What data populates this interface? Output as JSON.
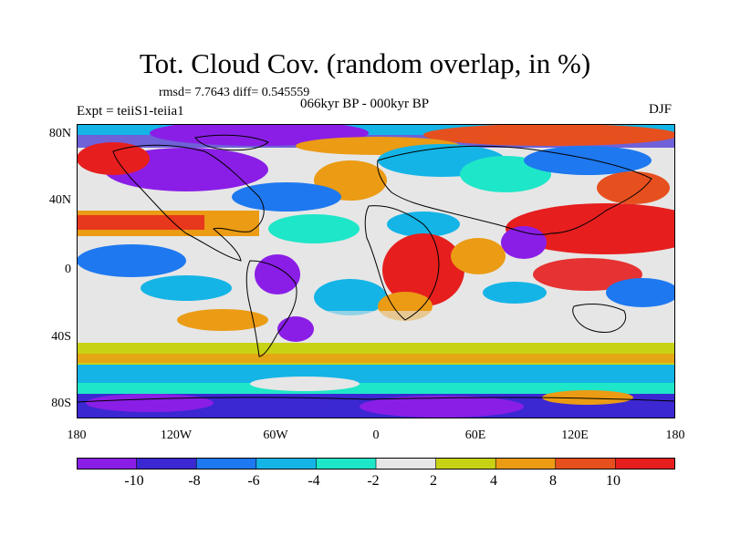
{
  "title": "Tot. Cloud Cov. (random overlap, in %)",
  "stats": "rmsd= 7.7643  diff= 0.545559",
  "subtitle": "066kyr BP - 000kyr BP",
  "experiment": "Expt = teiiS1-teiia1",
  "season": "DJF",
  "lat_labels": [
    "80N",
    "40N",
    "0",
    "40S",
    "80S"
  ],
  "lon_labels": [
    "180",
    "120W",
    "60W",
    "0",
    "60E",
    "120E",
    "180"
  ],
  "colorbar": {
    "tick_labels": [
      "-10",
      "-8",
      "-6",
      "-4",
      "-2",
      "2",
      "4",
      "8",
      "10"
    ],
    "colors": [
      "#8a1ee6",
      "#3c28d2",
      "#1e78f0",
      "#14b4e6",
      "#1ee6c8",
      "#e6e6e6",
      "#c8d214",
      "#eb9b14",
      "#e6501e",
      "#e61e1e"
    ]
  }
}
